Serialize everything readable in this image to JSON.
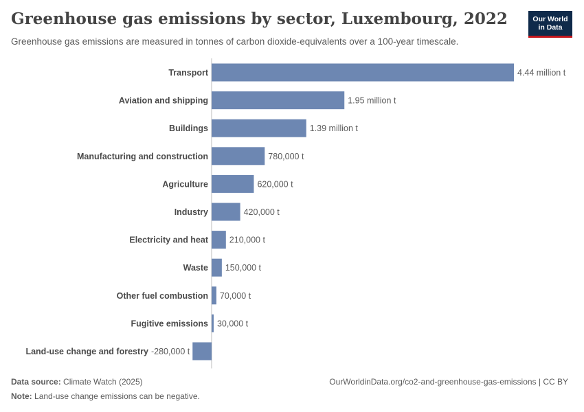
{
  "header": {
    "title": "Greenhouse gas emissions by sector, Luxembourg, 2022",
    "subtitle": "Greenhouse gas emissions are measured in tonnes of carbon dioxide-equivalents over a 100-year timescale.",
    "logo_line1": "Our World",
    "logo_line2": "in Data"
  },
  "footer": {
    "source_label": "Data source:",
    "source_value": "Climate Watch (2025)",
    "note_label": "Note:",
    "note_value": "Land-use change emissions can be negative.",
    "url": "OurWorldinData.org/co2-and-greenhouse-gas-emissions | CC BY"
  },
  "colors": {
    "bar": "#6d87b2",
    "logo_bg": "#0f2a4a",
    "logo_accent": "#c4161c"
  },
  "chart_data": {
    "type": "bar",
    "orientation": "horizontal",
    "categories": [
      "Transport",
      "Aviation and shipping",
      "Buildings",
      "Manufacturing and construction",
      "Agriculture",
      "Industry",
      "Electricity and heat",
      "Waste",
      "Other fuel combustion",
      "Fugitive emissions",
      "Land-use change and forestry"
    ],
    "values": [
      4440000,
      1950000,
      1390000,
      780000,
      620000,
      420000,
      210000,
      150000,
      70000,
      30000,
      -280000
    ],
    "value_labels": [
      "4.44 million t",
      "1.95 million t",
      "1.39 million t",
      "780,000 t",
      "620,000 t",
      "420,000 t",
      "210,000 t",
      "150,000 t",
      "70,000 t",
      "30,000 t",
      "-280,000 t"
    ],
    "xlim": [
      -280000,
      4440000
    ],
    "grid": false
  }
}
